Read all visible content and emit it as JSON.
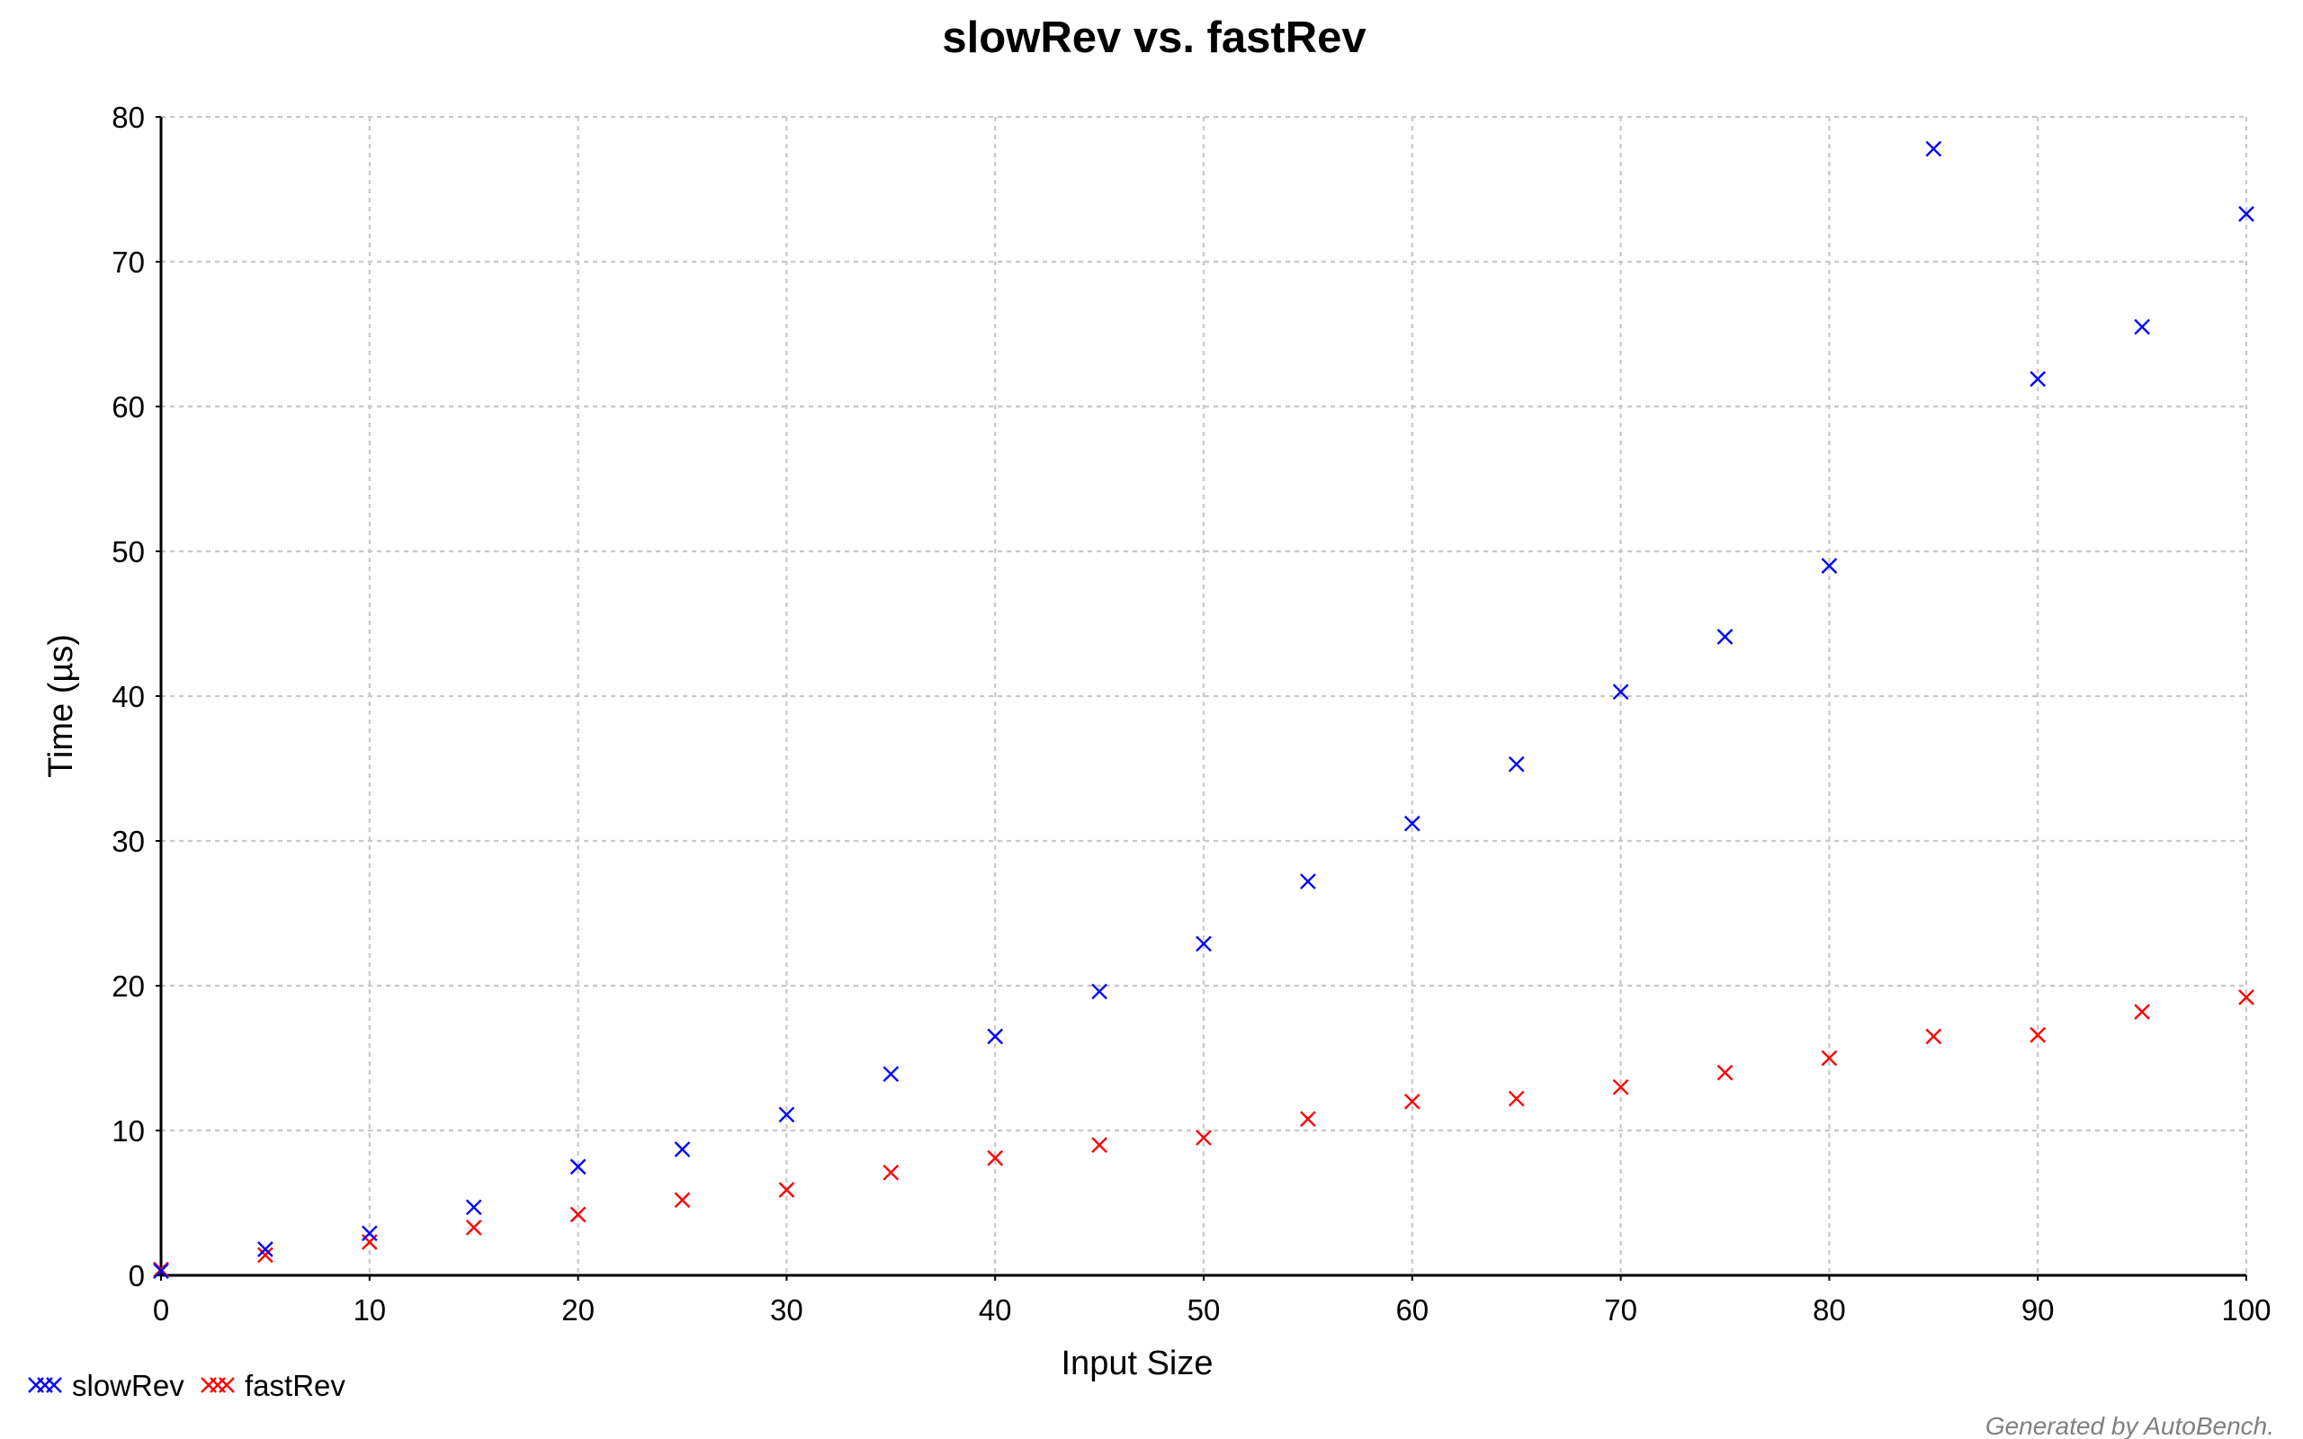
{
  "chart_data": {
    "type": "scatter",
    "title": "slowRev vs. fastRev",
    "xlabel": "Input Size",
    "ylabel": "Time (µs)",
    "xlim": [
      0,
      100
    ],
    "ylim": [
      0,
      80
    ],
    "x_ticks": [
      0,
      10,
      20,
      30,
      40,
      50,
      60,
      70,
      80,
      90,
      100
    ],
    "y_ticks": [
      0,
      10,
      20,
      30,
      40,
      50,
      60,
      70,
      80
    ],
    "grid": true,
    "legend_position": "bottom-left",
    "marker": "x",
    "x": [
      0,
      5,
      10,
      15,
      20,
      25,
      30,
      35,
      40,
      45,
      50,
      55,
      60,
      65,
      70,
      75,
      80,
      85,
      90,
      95,
      100
    ],
    "series": [
      {
        "name": "slowRev",
        "color": "#0000ff",
        "values": [
          0.3,
          1.8,
          2.9,
          4.7,
          7.5,
          8.7,
          11.1,
          13.9,
          16.5,
          19.6,
          22.9,
          27.2,
          31.2,
          35.3,
          40.3,
          44.1,
          49.0,
          77.8,
          61.9,
          65.5,
          73.3
        ]
      },
      {
        "name": "fastRev",
        "color": "#ff0000",
        "values": [
          0.4,
          1.4,
          2.3,
          3.3,
          4.2,
          5.2,
          5.9,
          7.1,
          8.1,
          9.0,
          9.5,
          10.8,
          12.0,
          12.2,
          13.0,
          14.0,
          15.0,
          16.5,
          16.6,
          18.2,
          19.2
        ]
      }
    ],
    "footer": "Generated by AutoBench."
  }
}
